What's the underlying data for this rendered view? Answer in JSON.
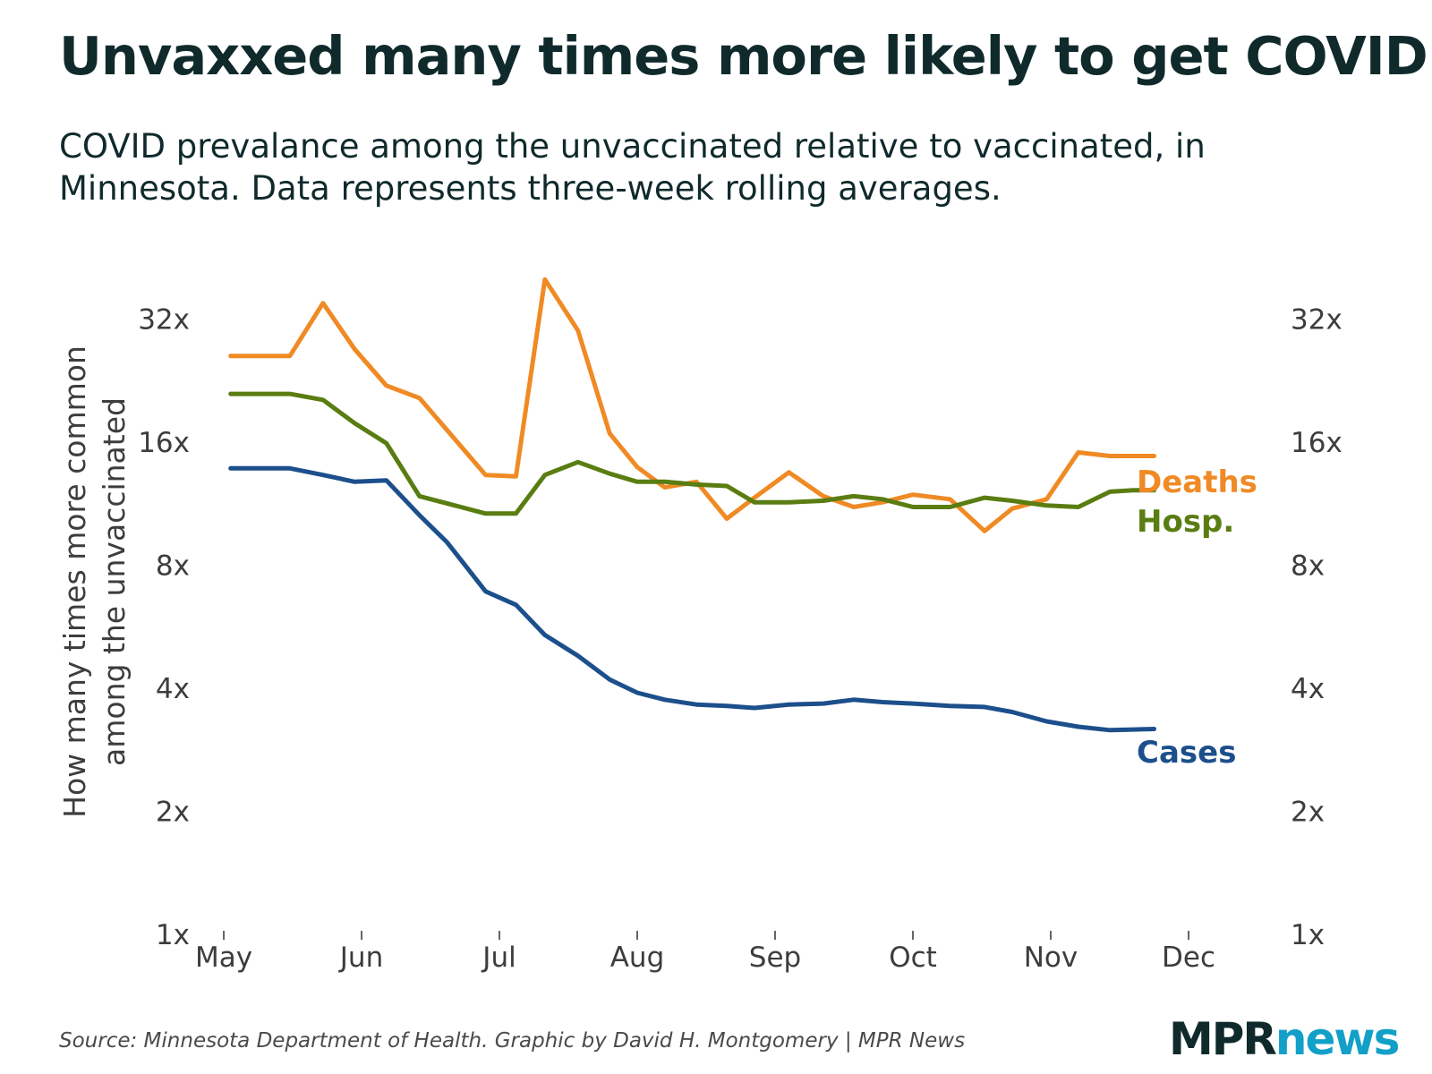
{
  "title": "Unvaxxed many times more likely to get COVID",
  "subtitle": "COVID prevalance among the unvaccinated relative to vaccinated, in Minnesota. Data represents three-week rolling averages.",
  "source": "Source: Minnesota Department of Health. Graphic by David H. Montgomery | MPR News",
  "logo": {
    "part1": "MPR",
    "part2": "news"
  },
  "colors": {
    "deaths": "#f08a24",
    "hosp": "#5a7d12",
    "cases": "#1c4f8b",
    "text": "#102a2c",
    "brand_accent": "#13a0c8"
  },
  "chart_data": {
    "type": "line",
    "title": "Unvaxxed many times more likely to get COVID",
    "ylabel": "How many times more common among the unvaccinated",
    "xlabel": "",
    "y_scale": "log2",
    "ylim": [
      1,
      45
    ],
    "y_ticks": [
      1,
      2,
      4,
      8,
      16,
      32
    ],
    "y_tick_labels": [
      "1x",
      "2x",
      "4x",
      "8x",
      "16x",
      "32x"
    ],
    "x_tick_labels": [
      "May",
      "Jun",
      "Jul",
      "Aug",
      "Sep",
      "Oct",
      "Nov",
      "Dec"
    ],
    "x_ticks_month_index": [
      0,
      1,
      2,
      3,
      4,
      5,
      6,
      7
    ],
    "xlim_month_index": [
      0,
      7.2
    ],
    "grid": false,
    "legend": "direct labels at right end of each line",
    "series": [
      {
        "name": "Deaths",
        "color": "#f08a24",
        "x": [
          0.05,
          0.48,
          0.72,
          0.95,
          1.18,
          1.42,
          1.9,
          2.12,
          2.33,
          2.57,
          2.8,
          3.0,
          3.2,
          3.43,
          3.65,
          3.85,
          4.1,
          4.35,
          4.57,
          4.78,
          5.0,
          5.27,
          5.52,
          5.72,
          5.97,
          6.2,
          6.43,
          6.6,
          6.75
        ],
        "y": [
          26,
          26,
          35,
          27,
          22,
          20.5,
          13.3,
          13.2,
          40,
          30,
          16.8,
          13.9,
          12.4,
          12.8,
          10.4,
          11.7,
          13.5,
          11.8,
          11.1,
          11.4,
          11.9,
          11.6,
          9.7,
          11,
          11.6,
          15.1,
          14.8,
          14.8,
          14.8
        ],
        "end_label": "Deaths"
      },
      {
        "name": "Hosp.",
        "color": "#5a7d12",
        "x": [
          0.05,
          0.48,
          0.72,
          0.95,
          1.18,
          1.42,
          1.9,
          2.12,
          2.33,
          2.57,
          2.8,
          3.0,
          3.2,
          3.43,
          3.65,
          3.85,
          4.1,
          4.35,
          4.57,
          4.78,
          5.0,
          5.27,
          5.52,
          5.72,
          5.97,
          6.2,
          6.43,
          6.6,
          6.75
        ],
        "y": [
          21,
          21,
          20.3,
          17.8,
          15.9,
          11.8,
          10.7,
          10.7,
          13.3,
          14.3,
          13.4,
          12.8,
          12.8,
          12.6,
          12.5,
          11.4,
          11.4,
          11.5,
          11.8,
          11.6,
          11.1,
          11.1,
          11.7,
          11.5,
          11.2,
          11.1,
          12.1,
          12.2,
          12.2
        ],
        "end_label": "Hosp."
      },
      {
        "name": "Cases",
        "color": "#1c4f8b",
        "x": [
          0.05,
          0.48,
          0.72,
          0.95,
          1.18,
          1.42,
          1.62,
          1.9,
          2.12,
          2.33,
          2.57,
          2.8,
          3.0,
          3.2,
          3.43,
          3.65,
          3.85,
          4.1,
          4.35,
          4.57,
          4.78,
          5.0,
          5.27,
          5.52,
          5.72,
          5.97,
          6.2,
          6.43,
          6.6,
          6.75
        ],
        "y": [
          13.8,
          13.8,
          13.3,
          12.8,
          12.9,
          10.6,
          9.1,
          6.9,
          6.4,
          5.4,
          4.8,
          4.2,
          3.9,
          3.75,
          3.65,
          3.62,
          3.58,
          3.65,
          3.67,
          3.75,
          3.7,
          3.67,
          3.62,
          3.6,
          3.5,
          3.32,
          3.22,
          3.16,
          3.17,
          3.18
        ],
        "end_label": "Cases"
      }
    ]
  }
}
